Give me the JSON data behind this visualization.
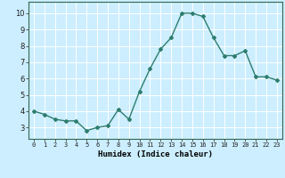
{
  "x": [
    0,
    1,
    2,
    3,
    4,
    5,
    6,
    7,
    8,
    9,
    10,
    11,
    12,
    13,
    14,
    15,
    16,
    17,
    18,
    19,
    20,
    21,
    22,
    23
  ],
  "y": [
    4.0,
    3.8,
    3.5,
    3.4,
    3.4,
    2.8,
    3.0,
    3.1,
    4.1,
    3.5,
    5.2,
    6.6,
    7.8,
    8.5,
    10.0,
    10.0,
    9.8,
    8.5,
    7.4,
    7.4,
    7.7,
    6.1,
    6.1,
    5.9
  ],
  "xlabel": "Humidex (Indice chaleur)",
  "xlim": [
    -0.5,
    23.5
  ],
  "ylim": [
    2.3,
    10.7
  ],
  "yticks": [
    3,
    4,
    5,
    6,
    7,
    8,
    9,
    10
  ],
  "xticks": [
    0,
    1,
    2,
    3,
    4,
    5,
    6,
    7,
    8,
    9,
    10,
    11,
    12,
    13,
    14,
    15,
    16,
    17,
    18,
    19,
    20,
    21,
    22,
    23
  ],
  "line_color": "#2e7d6e",
  "bg_color": "#cceeff",
  "grid_color": "#ffffff",
  "marker": "D",
  "marker_size": 2.0,
  "line_width": 1.0
}
